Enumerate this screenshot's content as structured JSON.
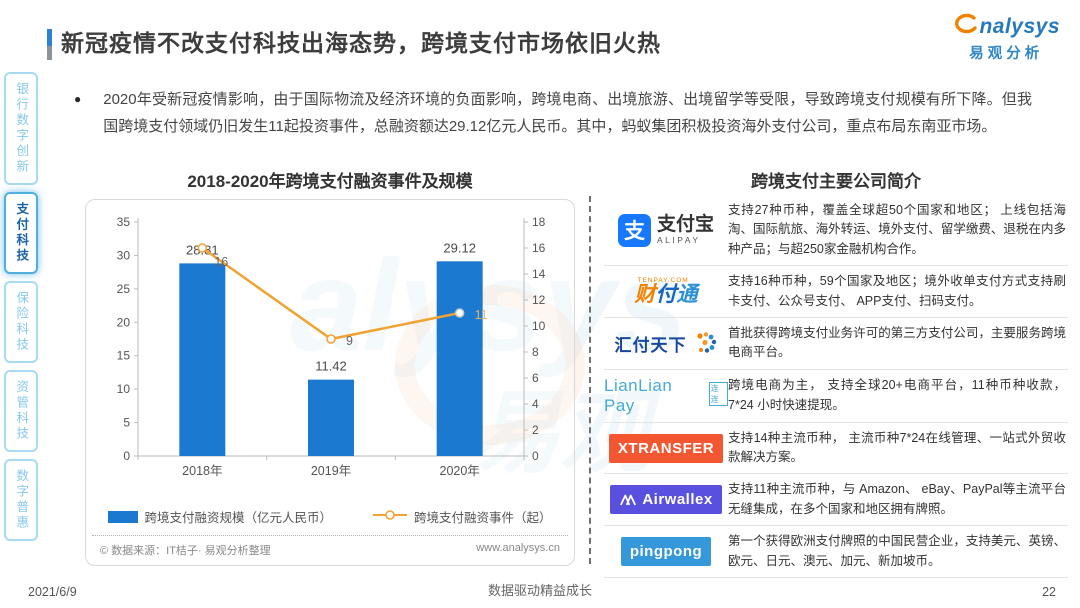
{
  "header": {
    "title": "新冠疫情不改支付科技出海态势，跨境支付市场依旧火热"
  },
  "logo": {
    "brand": "analysys",
    "brand_cn": "易观分析"
  },
  "sidebar": {
    "items": [
      {
        "label": "银行数字创新",
        "active": false
      },
      {
        "label": "支付科技",
        "active": true
      },
      {
        "label": "保险科技",
        "active": false
      },
      {
        "label": "资管科技",
        "active": false
      },
      {
        "label": "数字普惠",
        "active": false
      }
    ]
  },
  "summary": {
    "bullet": "●",
    "text": "2020年受新冠疫情影响，由于国际物流及经济环境的负面影响，跨境电商、出境旅游、出境留学等受限，导致跨境支付规模有所下降。但我国跨境支付领域仍旧发生11起投资事件，总融资额达29.12亿元人民币。其中，蚂蚁集团积极投资海外支付公司，重点布局东南亚市场。"
  },
  "chart": {
    "title": "2018-2020年跨境支付融资事件及规模",
    "source": "© 数据来源：IT桔子· 易观分析整理",
    "website": "www.analysys.cn"
  },
  "chart_data": {
    "type": "bar+line",
    "title": "2018-2020年跨境支付融资事件及规模",
    "categories": [
      "2018年",
      "2019年",
      "2020年"
    ],
    "series": [
      {
        "name": "跨境支付融资规模（亿元人民币）",
        "type": "bar",
        "axis": "left",
        "values": [
          28.81,
          11.42,
          29.12
        ],
        "color": "#1b79d0"
      },
      {
        "name": "跨境支付融资事件（起）",
        "type": "line",
        "axis": "right",
        "values": [
          16,
          9,
          11
        ],
        "color": "#f0a232"
      }
    ],
    "left_axis": {
      "min": 0,
      "max": 35,
      "step": 5
    },
    "right_axis": {
      "min": 0,
      "max": 18,
      "step": 2
    },
    "legend_position": "bottom",
    "grid": false
  },
  "companies": {
    "title": "跨境支付主要公司简介",
    "rows": [
      {
        "logo": {
          "style": "alipay",
          "icon_char": "支",
          "name": "支付宝",
          "sub": "ALIPAY"
        },
        "desc": "支持27种币种，覆盖全球超50个国家和地区； 上线包括海淘、国际航旅、海外转运、境外支付、留学缴费、退税在内多种产品；与超250家金融机构合作。"
      },
      {
        "logo": {
          "style": "tenpay",
          "top": "TENPAY.COM",
          "chars": [
            {
              "t": "财",
              "c": "#f08300"
            },
            {
              "t": "付",
              "c": "#1565c0"
            },
            {
              "t": "通",
              "c": "#2b8fd8"
            }
          ]
        },
        "desc": "支持16种币种，59个国家及地区；境外收单支付方式支持刷卡支付、公众号支付、 APP支付、扫码支付。"
      },
      {
        "logo": {
          "style": "huifu",
          "name": "汇付天下"
        },
        "desc": "首批获得跨境支付业务许可的第三方支付公司，主要服务跨境电商平台。"
      },
      {
        "logo": {
          "style": "lianlian",
          "name": "LianLian Pay",
          "badge": "连连"
        },
        "desc": "跨境电商为主， 支持全球20+电商平台，11种币种收款，7*24 小时快速提现。"
      },
      {
        "logo": {
          "style": "block",
          "text": "XTRANSFER",
          "bg": "#f25731"
        },
        "desc": "支持14种主流币种， 主流币种7*24在线管理、一站式外贸收款解决方案。"
      },
      {
        "logo": {
          "style": "airwallex",
          "text": "Airwallex",
          "bg": "#5a50e0"
        },
        "desc": "支持11种主流币种，与 Amazon、 eBay、PayPal等主流平台无缝集成，在多个国家和地区拥有牌照。"
      },
      {
        "logo": {
          "style": "block",
          "text": "pingpong",
          "bg": "#3498db"
        },
        "desc": "第一个获得欧洲支付牌照的中国民营企业，支持美元、英镑、欧元、日元、澳元、加元、新加坡币。"
      }
    ]
  },
  "page": {
    "date": "2021/6/9",
    "footer_center": "数据驱动精益成长",
    "page_number": "22"
  }
}
